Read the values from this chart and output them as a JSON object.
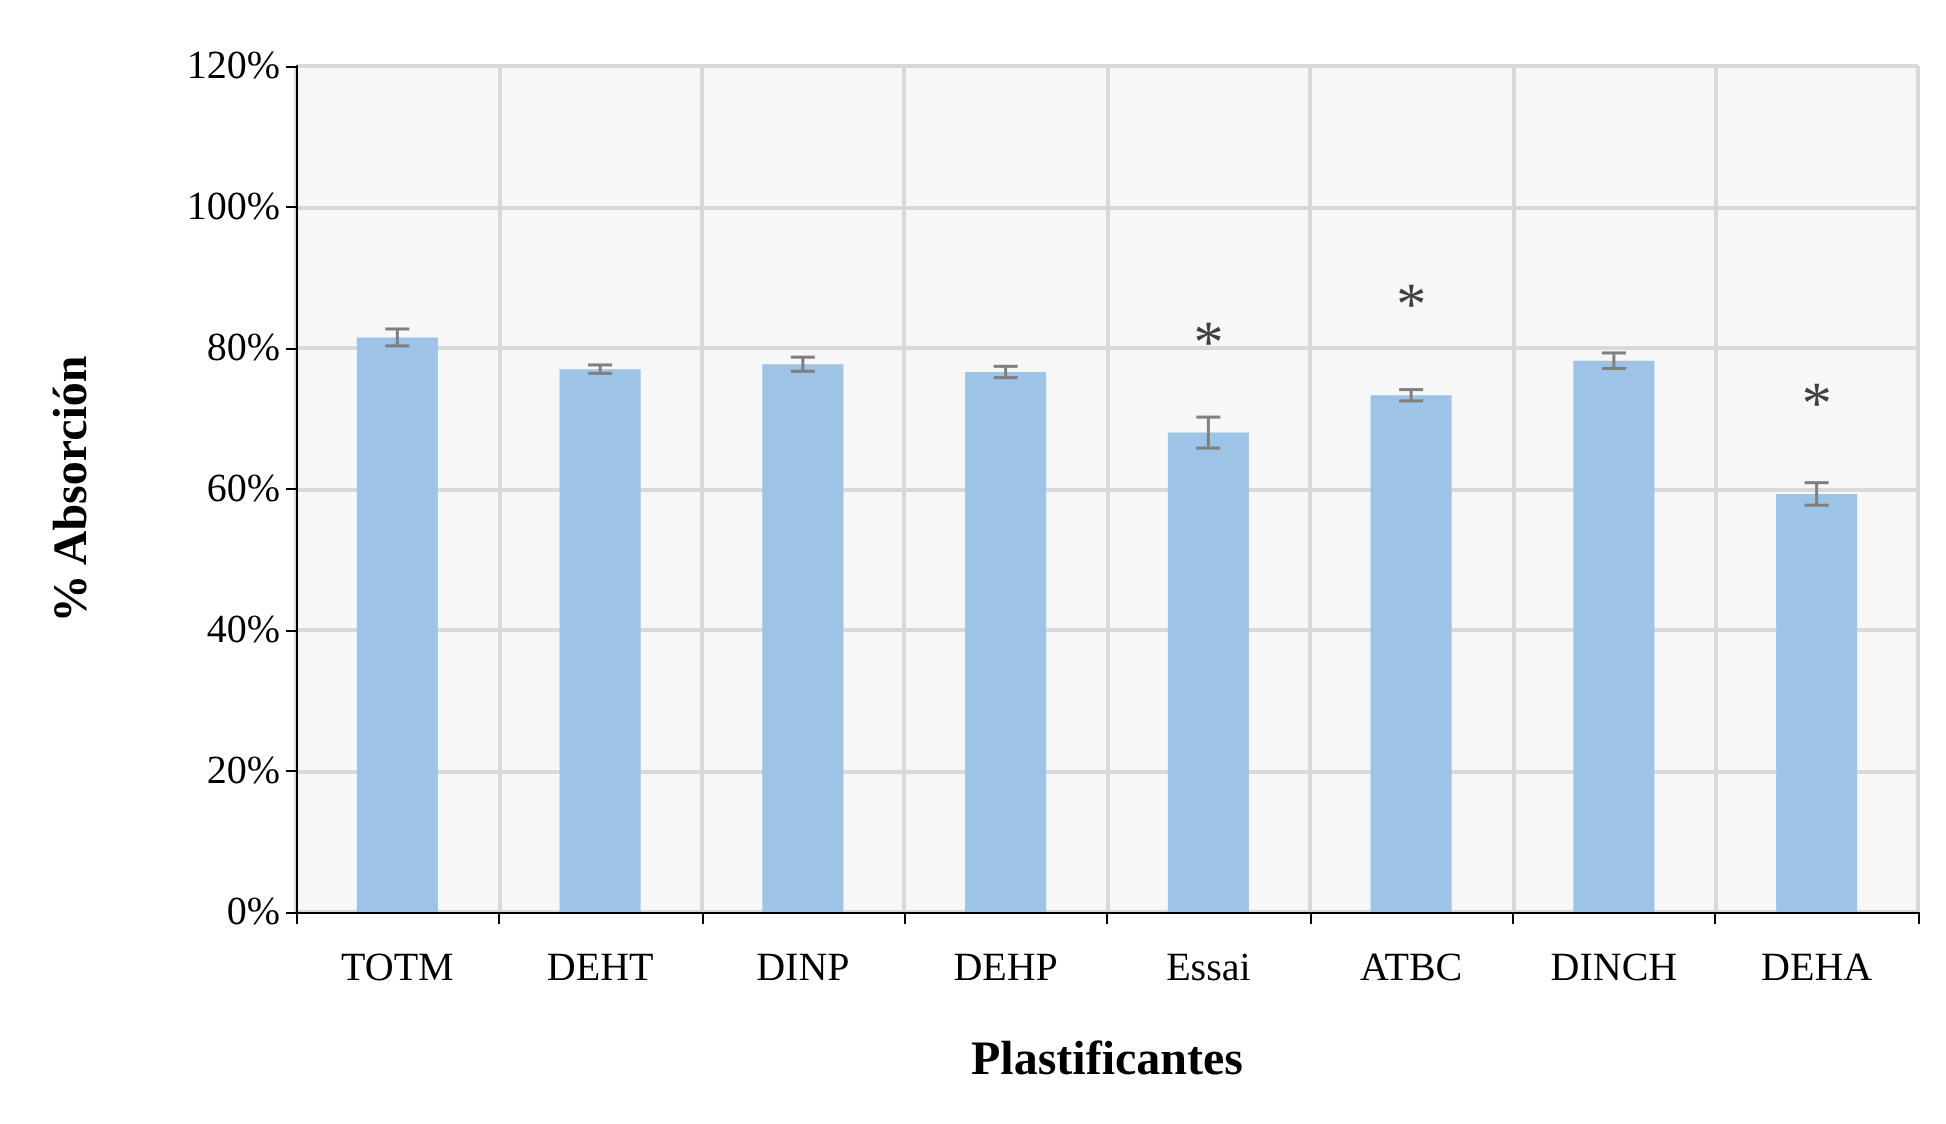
{
  "chart_data": {
    "type": "bar",
    "xlabel": "Plastificantes",
    "ylabel": "% Absorción",
    "categories": [
      "TOTM",
      "DEHT",
      "DINP",
      "DEHP",
      "Essai",
      "ATBC",
      "DINCH",
      "DEHA"
    ],
    "values": [
      81.5,
      77.0,
      77.7,
      76.6,
      68.0,
      73.3,
      78.2,
      59.3
    ],
    "errors": [
      1.2,
      0.6,
      1.0,
      0.8,
      2.2,
      0.8,
      1.1,
      1.6
    ],
    "color": "#9dc3e6",
    "ylim": [
      0,
      120
    ],
    "yticks": [
      {
        "value": 0,
        "label": "0%"
      },
      {
        "value": 20,
        "label": "20%"
      },
      {
        "value": 40,
        "label": "40%"
      },
      {
        "value": 60,
        "label": "60%"
      },
      {
        "value": 80,
        "label": "80%"
      },
      {
        "value": 100,
        "label": "100%"
      },
      {
        "value": 120,
        "label": "120%"
      }
    ],
    "grid": true,
    "annotations": [
      {
        "text": "*",
        "x": "Essai",
        "y": 68.0
      },
      {
        "text": "*",
        "x": "ATBC",
        "y": 73.3
      },
      {
        "text": "*",
        "x": "DEHA",
        "y": 59.3
      }
    ]
  }
}
